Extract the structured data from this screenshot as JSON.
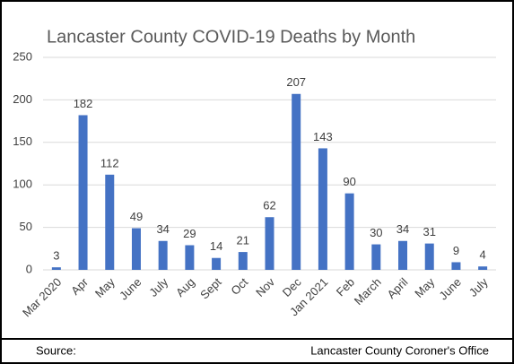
{
  "chart_data": {
    "type": "bar",
    "title": "Lancaster County COVID-19 Deaths by Month",
    "categories": [
      "Mar 2020",
      "Apr",
      "May",
      "June",
      "July",
      "Aug",
      "Sept",
      "Oct",
      "Nov",
      "Dec",
      "Jan 2021",
      "Feb",
      "March",
      "April",
      "May",
      "June",
      "July"
    ],
    "values": [
      3,
      182,
      112,
      49,
      34,
      29,
      14,
      21,
      62,
      207,
      143,
      90,
      30,
      34,
      31,
      9,
      4
    ],
    "color": "#4472c4",
    "ylim": [
      0,
      250
    ],
    "yticks": [
      0,
      50,
      100,
      150,
      200,
      250
    ],
    "grid": true
  },
  "source": {
    "label": "Source:",
    "text": "Lancaster County Coroner's Office"
  }
}
